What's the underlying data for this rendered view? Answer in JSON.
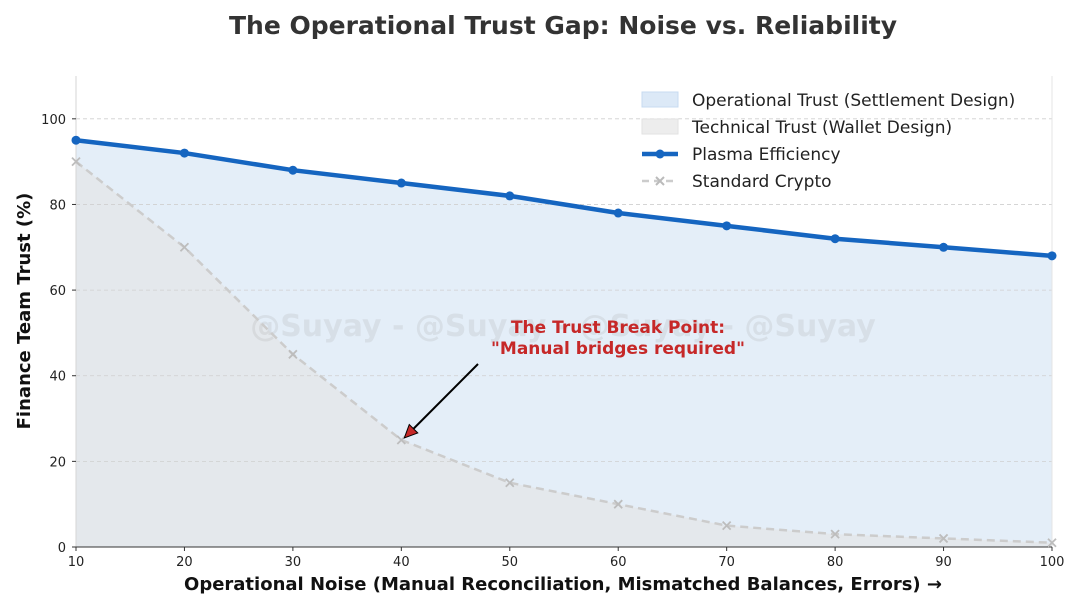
{
  "chart_data": {
    "type": "line",
    "title": "The Operational Trust Gap: Noise vs. Reliability",
    "xlabel": "Operational Noise (Manual Reconciliation, Mismatched Balances, Errors) →",
    "ylabel": "Finance Team Trust (%)",
    "xlim": [
      10,
      100
    ],
    "ylim": [
      0,
      110
    ],
    "x": [
      10,
      20,
      30,
      40,
      50,
      60,
      70,
      80,
      90,
      100
    ],
    "x_ticks": [
      "10",
      "20",
      "30",
      "40",
      "50",
      "60",
      "70",
      "80",
      "90",
      "100"
    ],
    "y_ticks": [
      "0",
      "20",
      "40",
      "60",
      "80",
      "100"
    ],
    "grid": "y-dashed",
    "legend_placement": "top-right",
    "series": [
      {
        "name": "Plasma Efficiency",
        "values": [
          95,
          92,
          88,
          85,
          82,
          78,
          75,
          72,
          70,
          68
        ],
        "color": "#1565c0",
        "style": "solid",
        "marker": "circle"
      },
      {
        "name": "Standard Crypto",
        "values": [
          90,
          70,
          45,
          25,
          15,
          10,
          5,
          3,
          2,
          1
        ],
        "color": "#cccccc",
        "style": "dashed",
        "marker": "x"
      }
    ],
    "areas": [
      {
        "name": "Operational Trust (Settlement Design)",
        "under_series": "Plasma Efficiency",
        "color": "#e3edf8"
      },
      {
        "name": "Technical Trust (Wallet Design)",
        "under_series": "Standard Crypto",
        "color": "#e4e6ea"
      }
    ],
    "annotations": [
      {
        "text_line1": "The Trust Break Point:",
        "text_line2": "\"Manual bridges required\"",
        "x": 40,
        "y": 25,
        "color": "#c62828"
      }
    ],
    "watermark": "@Suyay - @Suyay - @Suyay - @Suyay"
  }
}
